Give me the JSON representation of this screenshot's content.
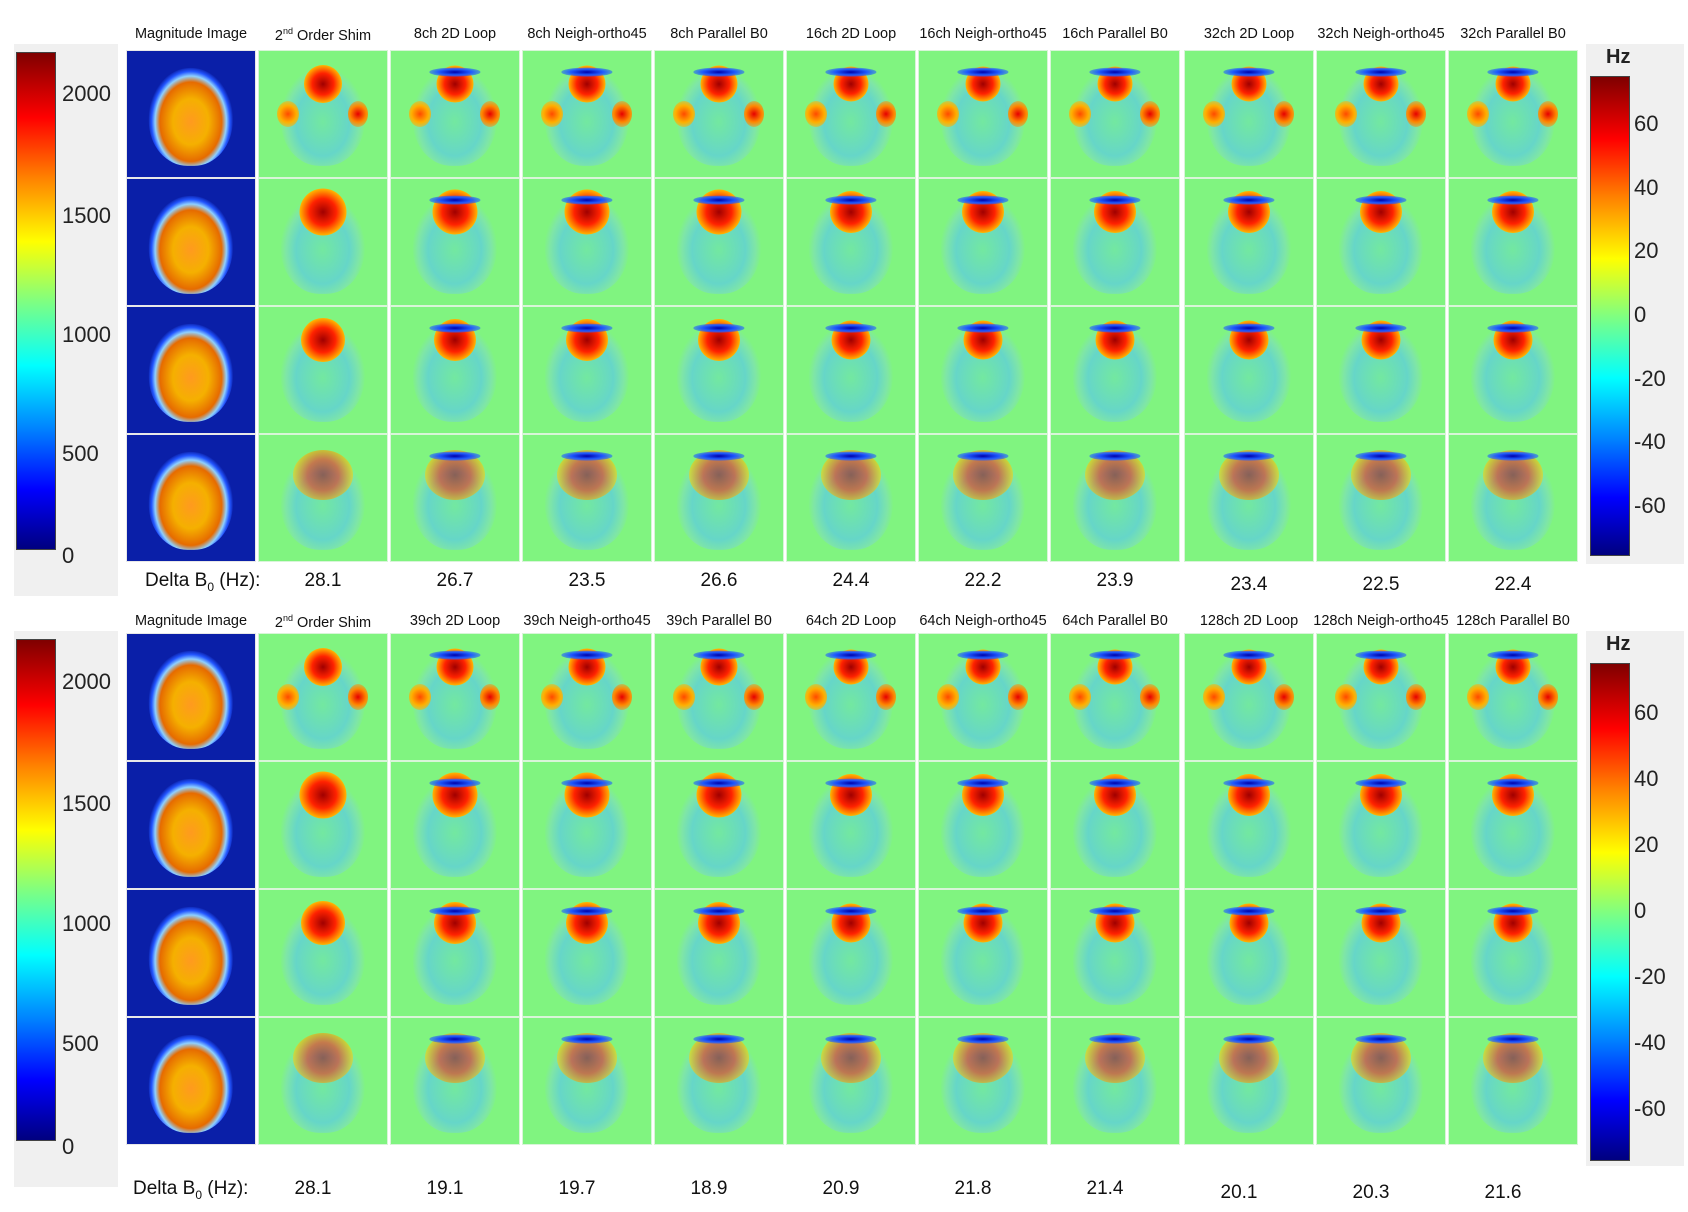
{
  "colors": {
    "field_bg": "#80f480",
    "mag_bg": "#0a1fa8"
  },
  "panels": [
    {
      "mag_colorbar": {
        "ticks": [
          "2000",
          "1500",
          "1000",
          "500",
          "0"
        ]
      },
      "hz_colorbar": {
        "unit": "Hz",
        "ticks": [
          "60",
          "40",
          "20",
          "0",
          "-20",
          "-40",
          "-60"
        ]
      },
      "columns": [
        {
          "label": "Magnitude Image",
          "sup": ""
        },
        {
          "label": "2",
          "sup": "nd",
          "rest": " Order Shim"
        },
        {
          "label": "8ch 2D Loop",
          "sup": ""
        },
        {
          "label": "8ch Neigh-ortho45",
          "sup": ""
        },
        {
          "label": "8ch Parallel B0",
          "sup": ""
        },
        {
          "label": "16ch 2D Loop",
          "sup": ""
        },
        {
          "label": "16ch Neigh-ortho45",
          "sup": ""
        },
        {
          "label": "16ch Parallel B0",
          "sup": ""
        },
        {
          "label": "32ch 2D Loop",
          "sup": ""
        },
        {
          "label": "32ch Neigh-ortho45",
          "sup": ""
        },
        {
          "label": "32ch Parallel B0",
          "sup": ""
        }
      ],
      "delta_label": {
        "text": "Delta B",
        "sub": "0",
        "unit": " (Hz):"
      },
      "delta_values": [
        "28.1",
        "26.7",
        "23.5",
        "26.6",
        "24.4",
        "22.2",
        "23.9",
        "23.4",
        "22.5",
        "22.4"
      ]
    },
    {
      "mag_colorbar": {
        "ticks": [
          "2000",
          "1500",
          "1000",
          "500",
          "0"
        ]
      },
      "hz_colorbar": {
        "unit": "Hz",
        "ticks": [
          "60",
          "40",
          "20",
          "0",
          "-20",
          "-40",
          "-60"
        ]
      },
      "columns": [
        {
          "label": "Magnitude Image",
          "sup": ""
        },
        {
          "label": "2",
          "sup": "nd",
          "rest": " Order Shim"
        },
        {
          "label": "39ch 2D Loop",
          "sup": ""
        },
        {
          "label": "39ch Neigh-ortho45",
          "sup": ""
        },
        {
          "label": "39ch Parallel B0",
          "sup": ""
        },
        {
          "label": "64ch 2D Loop",
          "sup": ""
        },
        {
          "label": "64ch Neigh-ortho45",
          "sup": ""
        },
        {
          "label": "64ch Parallel B0",
          "sup": ""
        },
        {
          "label": "128ch 2D Loop",
          "sup": ""
        },
        {
          "label": "128ch Neigh-ortho45",
          "sup": ""
        },
        {
          "label": "128ch Parallel B0",
          "sup": ""
        }
      ],
      "delta_label": {
        "text": "Delta B",
        "sub": "0",
        "unit": " (Hz):"
      },
      "delta_values": [
        "28.1",
        "19.1",
        "19.7",
        "18.9",
        "20.9",
        "21.8",
        "21.4",
        "20.1",
        "20.3",
        "21.6"
      ]
    }
  ]
}
